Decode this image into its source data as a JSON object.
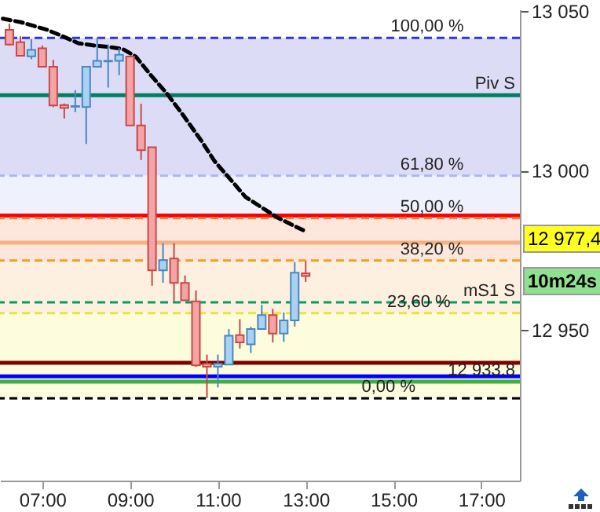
{
  "chart_data": {
    "type": "candlestick",
    "x": [
      6.25,
      6.5,
      6.75,
      7,
      7.25,
      7.5,
      7.75,
      8,
      8.25,
      8.5,
      8.75,
      9,
      9.25,
      9.5,
      9.75,
      10,
      10.25,
      10.5,
      10.75,
      11,
      11.25,
      11.5,
      11.75,
      12,
      12.25,
      12.5,
      12.75,
      13
    ],
    "ohlc": [
      [
        13044.1,
        13046,
        13039.2,
        13039.5
      ],
      [
        13040.2,
        13042.1,
        13035.8,
        13036
      ],
      [
        13035.8,
        13041.2,
        13034.9,
        13037.8
      ],
      [
        13038.3,
        13039.2,
        13032.5,
        13032.5
      ],
      [
        13032.5,
        13034.7,
        13019.9,
        13020.4
      ],
      [
        13020.5,
        13021,
        13016.3,
        13019.6
      ],
      [
        13020,
        13025.2,
        13018.3,
        13020.2
      ],
      [
        13019.9,
        13032.5,
        13008.3,
        13032.5
      ],
      [
        13032.5,
        13041.6,
        13032.5,
        13034.4
      ],
      [
        13034.2,
        13039.5,
        13026,
        13034.4
      ],
      [
        13034.4,
        13038.4,
        13029.9,
        13036.3
      ],
      [
        13035.7,
        13036,
        13014.1,
        13014.1
      ],
      [
        13014.1,
        13020.9,
        13003.3,
        13006.4
      ],
      [
        13007.3,
        13007.3,
        12963.9,
        12968.7
      ],
      [
        12968.7,
        12977.2,
        12964.8,
        12971.9
      ],
      [
        12972.4,
        12977.2,
        12959,
        12964.8
      ],
      [
        12964.8,
        12967.1,
        12959.3,
        12959.3
      ],
      [
        12959,
        12962.4,
        12938.5,
        12938.9
      ],
      [
        12939.4,
        12942.3,
        12928.6,
        12938.5
      ],
      [
        12938.5,
        12942.3,
        12932,
        12939.4
      ],
      [
        12939.2,
        12950.3,
        12939.2,
        12948.2
      ],
      [
        12948.4,
        12953.4,
        12944.2,
        12946.1
      ],
      [
        12945.5,
        12951,
        12942.8,
        12950.3
      ],
      [
        12950.3,
        12957.9,
        12950.3,
        12954.7
      ],
      [
        12954.7,
        12956.6,
        12946.1,
        12948.9
      ],
      [
        12948.9,
        12955.5,
        12946.3,
        12953
      ],
      [
        12953,
        12971.3,
        12951.1,
        12968
      ],
      [
        12967.8,
        12971.6,
        12965.1,
        12966.9
      ]
    ],
    "series": [
      {
        "type": "line",
        "color": "#000000",
        "line_style": "dashed",
        "x": [
          6.1,
          6.51,
          7.11,
          7.46,
          7.82,
          8.18,
          8.54,
          8.83,
          9.13,
          9.49,
          9.85,
          10.2,
          10.62,
          10.92,
          11.28,
          11.63,
          11.99,
          12.35,
          12.7,
          12.94
        ],
        "values": [
          13047.6,
          13046.5,
          13044.1,
          13042.1,
          13039.9,
          13039.2,
          13038.7,
          13038.1,
          13035.7,
          13029.6,
          13023.9,
          13017.5,
          13009.4,
          13003,
          12997.3,
          12991.7,
          12988.5,
          12985.3,
          12982.9,
          12981.3
        ]
      }
    ],
    "xlim": [
      6.036,
      17.88
    ],
    "xticks": [
      {
        "value": 7,
        "label": "07:00"
      },
      {
        "value": 9,
        "label": "09:00"
      },
      {
        "value": 11,
        "label": "11:00"
      },
      {
        "value": 13,
        "label": "13:00"
      },
      {
        "value": 15,
        "label": "15:00"
      },
      {
        "value": 17,
        "label": "17:00"
      }
    ],
    "ylim": [
      12902.8,
      13050.5
    ],
    "yticks": [
      {
        "value": 12950,
        "label": "12 950"
      },
      {
        "value": 13000,
        "label": "13 000"
      },
      {
        "value": 13050,
        "label": "13 050"
      }
    ],
    "bands": [
      {
        "axis": "y",
        "from": 12998.4,
        "to": 13041.6,
        "color": "#dcdcf6"
      },
      {
        "axis": "y",
        "from": 12985.1,
        "to": 12998.4,
        "color": "#eff2fd"
      },
      {
        "axis": "y",
        "from": 12971.8,
        "to": 12985.1,
        "color": "#fde6dc"
      },
      {
        "axis": "y",
        "from": 12955.3,
        "to": 12971.8,
        "color": "#fdf0e0"
      },
      {
        "axis": "y",
        "from": 12928.6,
        "to": 12955.3,
        "color": "#fdfdde"
      }
    ],
    "ref_lines": [
      {
        "axis": "y",
        "value": 13041.6,
        "color": "#3333dd",
        "line_style": "dashed"
      },
      {
        "axis": "y",
        "value": 13023.6,
        "label": "Piv S",
        "color": "#008060",
        "line_style": "solid"
      },
      {
        "axis": "y",
        "value": 12998.4,
        "color": "#aab8ee",
        "line_style": "dashed"
      },
      {
        "axis": "y",
        "value": 12985.9,
        "color": "#ff0000",
        "line_style": "solid"
      },
      {
        "axis": "y",
        "value": 12985.1,
        "color": "#f08040",
        "line_style": "dashed"
      },
      {
        "axis": "y",
        "value": 12977.4,
        "color": "#f8b080",
        "line_style": "solid"
      },
      {
        "axis": "y",
        "value": 12971.8,
        "color": "#f0a020",
        "line_style": "dashed"
      },
      {
        "axis": "y",
        "value": 12958.7,
        "label": "mS1 S",
        "color": "#00a060",
        "line_style": "dashed"
      },
      {
        "axis": "y",
        "value": 12955.3,
        "color": "#e8e830",
        "line_style": "dashed"
      },
      {
        "axis": "y",
        "value": 12939.7,
        "color": "#800000",
        "line_style": "solid"
      },
      {
        "axis": "y",
        "value": 12935.5,
        "color": "#0000ff",
        "line_style": "solid"
      },
      {
        "axis": "y",
        "value": 12933.8,
        "label": "12 933,8",
        "color": "#40b040",
        "line_style": "solid"
      },
      {
        "axis": "y",
        "value": 12928.6,
        "color": "#000000",
        "line_style": "dashed"
      }
    ],
    "annotations": [
      "12 977,4",
      "10m24s",
      {
        "text": "100,00 %",
        "x": 16.6,
        "y": 13041.6
      },
      {
        "text": "61,80 %",
        "x": 16.6,
        "y": 12998.4
      },
      {
        "text": "50,00 %",
        "x": 16.6,
        "y": 12985.1
      },
      {
        "text": "38,20 %",
        "x": 16.6,
        "y": 12971.8
      },
      {
        "text": "23,60 %",
        "x": 16.3,
        "y": 12955.3
      },
      {
        "text": "0,00 %",
        "x": 15.5,
        "y": 12928.6
      }
    ],
    "grid": false
  }
}
